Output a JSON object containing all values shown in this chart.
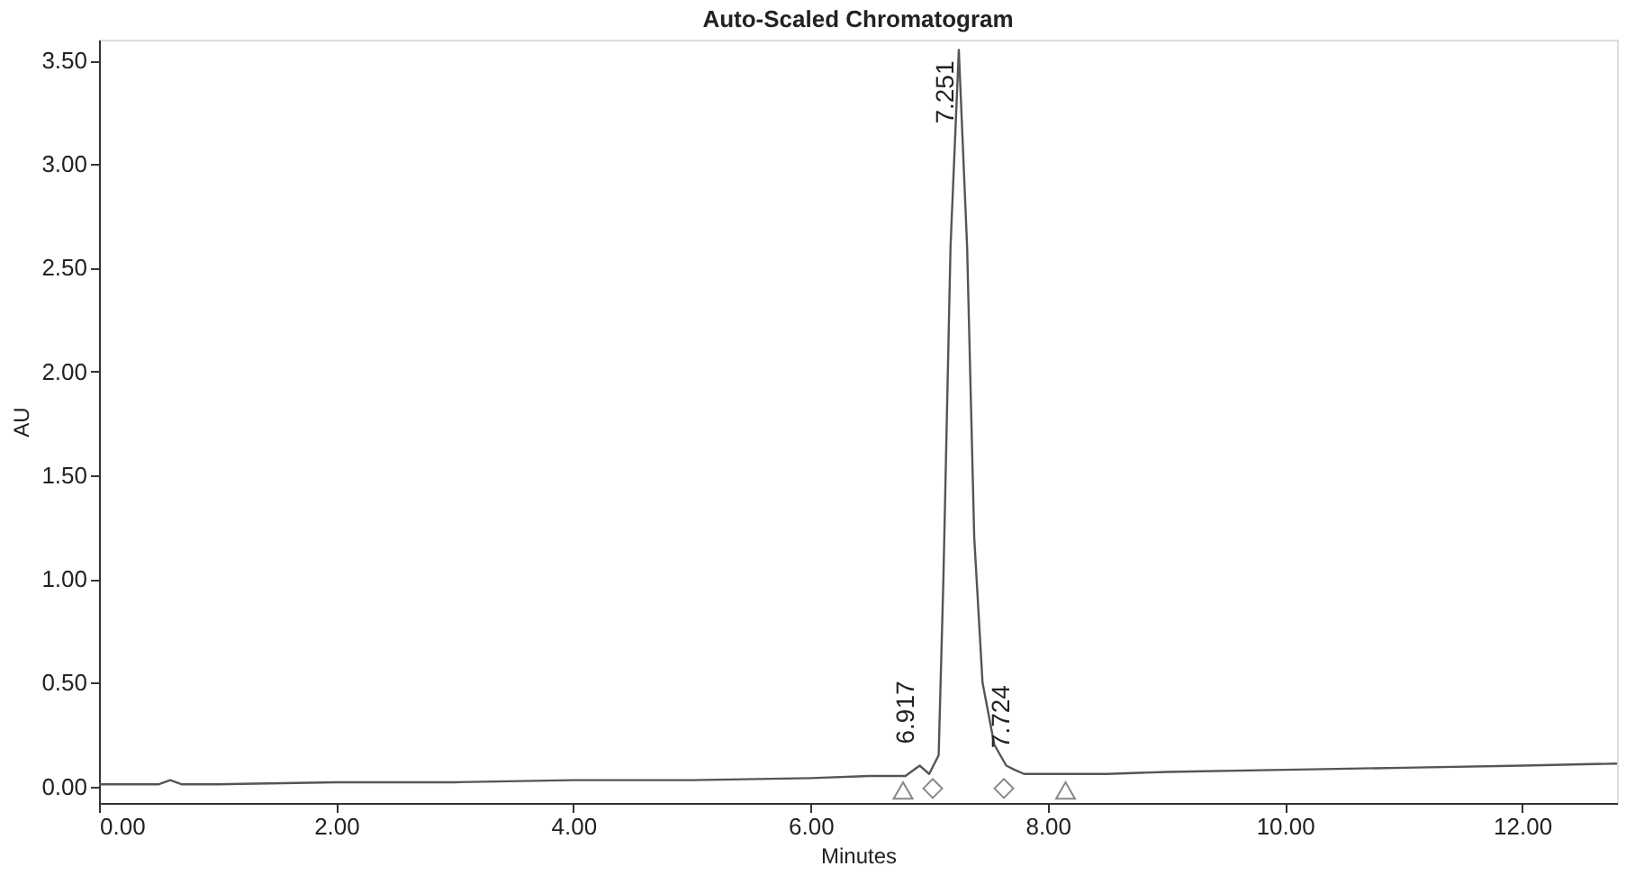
{
  "chart_data": {
    "type": "line",
    "title": "Auto-Scaled Chromatogram",
    "xlabel": "Minutes",
    "ylabel": "AU",
    "xlim": [
      0,
      12.8
    ],
    "ylim": [
      -0.08,
      3.6
    ],
    "xticks": [
      {
        "value": 0,
        "label": "0.00"
      },
      {
        "value": 2,
        "label": "2.00"
      },
      {
        "value": 4,
        "label": "4.00"
      },
      {
        "value": 6,
        "label": "6.00"
      },
      {
        "value": 8,
        "label": "8.00"
      },
      {
        "value": 10,
        "label": "10.00"
      },
      {
        "value": 12,
        "label": "12.00"
      }
    ],
    "yticks": [
      {
        "value": 0,
        "label": "0.00"
      },
      {
        "value": 0.5,
        "label": "0.50"
      },
      {
        "value": 1,
        "label": "1.00"
      },
      {
        "value": 1.5,
        "label": "1.50"
      },
      {
        "value": 2,
        "label": "2.00"
      },
      {
        "value": 2.5,
        "label": "2.50"
      },
      {
        "value": 3,
        "label": "3.00"
      },
      {
        "value": 3.5,
        "label": "3.50"
      }
    ],
    "grid": false,
    "series": [
      {
        "type": "line",
        "color": "#555555",
        "marker": "none",
        "line_style": "solid",
        "x": [
          0,
          0.5,
          0.6,
          0.7,
          1,
          2,
          3,
          4,
          5,
          6,
          6.5,
          6.8,
          6.92,
          7.0,
          7.08,
          7.12,
          7.18,
          7.25,
          7.32,
          7.38,
          7.45,
          7.55,
          7.65,
          7.72,
          7.8,
          8.0,
          8.5,
          9,
          10,
          11,
          12,
          12.8
        ],
        "values": [
          0.01,
          0.01,
          0.03,
          0.01,
          0.01,
          0.02,
          0.02,
          0.03,
          0.03,
          0.04,
          0.05,
          0.05,
          0.1,
          0.06,
          0.15,
          1.0,
          2.6,
          3.55,
          2.6,
          1.2,
          0.5,
          0.2,
          0.1,
          0.08,
          0.06,
          0.06,
          0.06,
          0.07,
          0.08,
          0.09,
          0.1,
          0.11
        ]
      },
      {
        "type": "scatter",
        "color": "#555555",
        "marker": "triangle",
        "x": [
          6.78,
          8.15
        ],
        "values": [
          -0.02,
          -0.02
        ]
      },
      {
        "type": "scatter",
        "color": "#555555",
        "marker": "diamond",
        "x": [
          7.03,
          7.63
        ],
        "values": [
          -0.01,
          -0.01
        ]
      }
    ],
    "annotations": [
      {
        "text": "6.917",
        "x": 6.917,
        "y": 0.1
      },
      {
        "text": "7.251",
        "x": 7.251,
        "y": 3.55
      },
      {
        "text": "7.724",
        "x": 7.724,
        "y": 0.08
      }
    ]
  }
}
